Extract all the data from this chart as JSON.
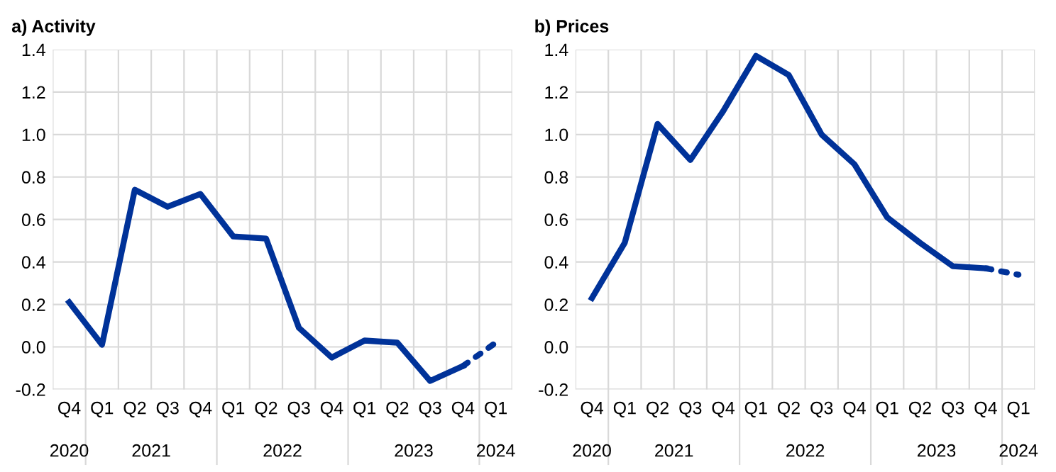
{
  "chart_data": [
    {
      "type": "line",
      "title": "a) Activity",
      "categories": [
        "Q4",
        "Q1",
        "Q2",
        "Q3",
        "Q4",
        "Q1",
        "Q2",
        "Q3",
        "Q4",
        "Q1",
        "Q2",
        "Q3",
        "Q4",
        "Q1"
      ],
      "series": [
        {
          "color": "#003299",
          "line_style": "solid",
          "values": [
            0.21,
            0.01,
            0.74,
            0.66,
            0.72,
            0.52,
            0.51,
            0.09,
            -0.05,
            0.03,
            0.02,
            -0.16,
            -0.09,
            null
          ]
        },
        {
          "color": "#003299",
          "line_style": "dotted",
          "values": [
            null,
            null,
            null,
            null,
            null,
            null,
            null,
            null,
            null,
            null,
            null,
            null,
            -0.09,
            0.02
          ]
        }
      ],
      "ylim": [
        -0.2,
        1.4
      ],
      "yticks": [
        {
          "value": -0.2,
          "label": "-0.2"
        },
        {
          "value": 0,
          "label": "0.0"
        },
        0.2,
        0.4,
        0.6,
        0.8,
        {
          "value": 1,
          "label": "1.0"
        },
        1.2,
        1.4
      ],
      "grid": true,
      "annotations": [
        "2020",
        "2021",
        "2022",
        "2023",
        "2024"
      ]
    },
    {
      "type": "line",
      "title": "b) Prices",
      "categories": [
        "Q4",
        "Q1",
        "Q2",
        "Q3",
        "Q4",
        "Q1",
        "Q2",
        "Q3",
        "Q4",
        "Q1",
        "Q2",
        "Q3",
        "Q4",
        "Q1"
      ],
      "series": [
        {
          "color": "#003299",
          "line_style": "solid",
          "values": [
            0.23,
            0.49,
            1.05,
            0.88,
            1.11,
            1.37,
            1.28,
            1.0,
            0.86,
            0.61,
            0.49,
            0.38,
            0.37,
            null
          ]
        },
        {
          "color": "#003299",
          "line_style": "dotted",
          "values": [
            null,
            null,
            null,
            null,
            null,
            null,
            null,
            null,
            null,
            null,
            null,
            null,
            0.37,
            0.34
          ]
        }
      ],
      "ylim": [
        -0.2,
        1.4
      ],
      "yticks": [
        {
          "value": -0.2,
          "label": "-0.2"
        },
        {
          "value": 0,
          "label": "0.0"
        },
        0.2,
        0.4,
        0.6,
        0.8,
        {
          "value": 1,
          "label": "1.0"
        },
        1.2,
        1.4
      ],
      "grid": true,
      "annotations": [
        "2020",
        "2021",
        "2022",
        "2023",
        "2024"
      ]
    }
  ]
}
